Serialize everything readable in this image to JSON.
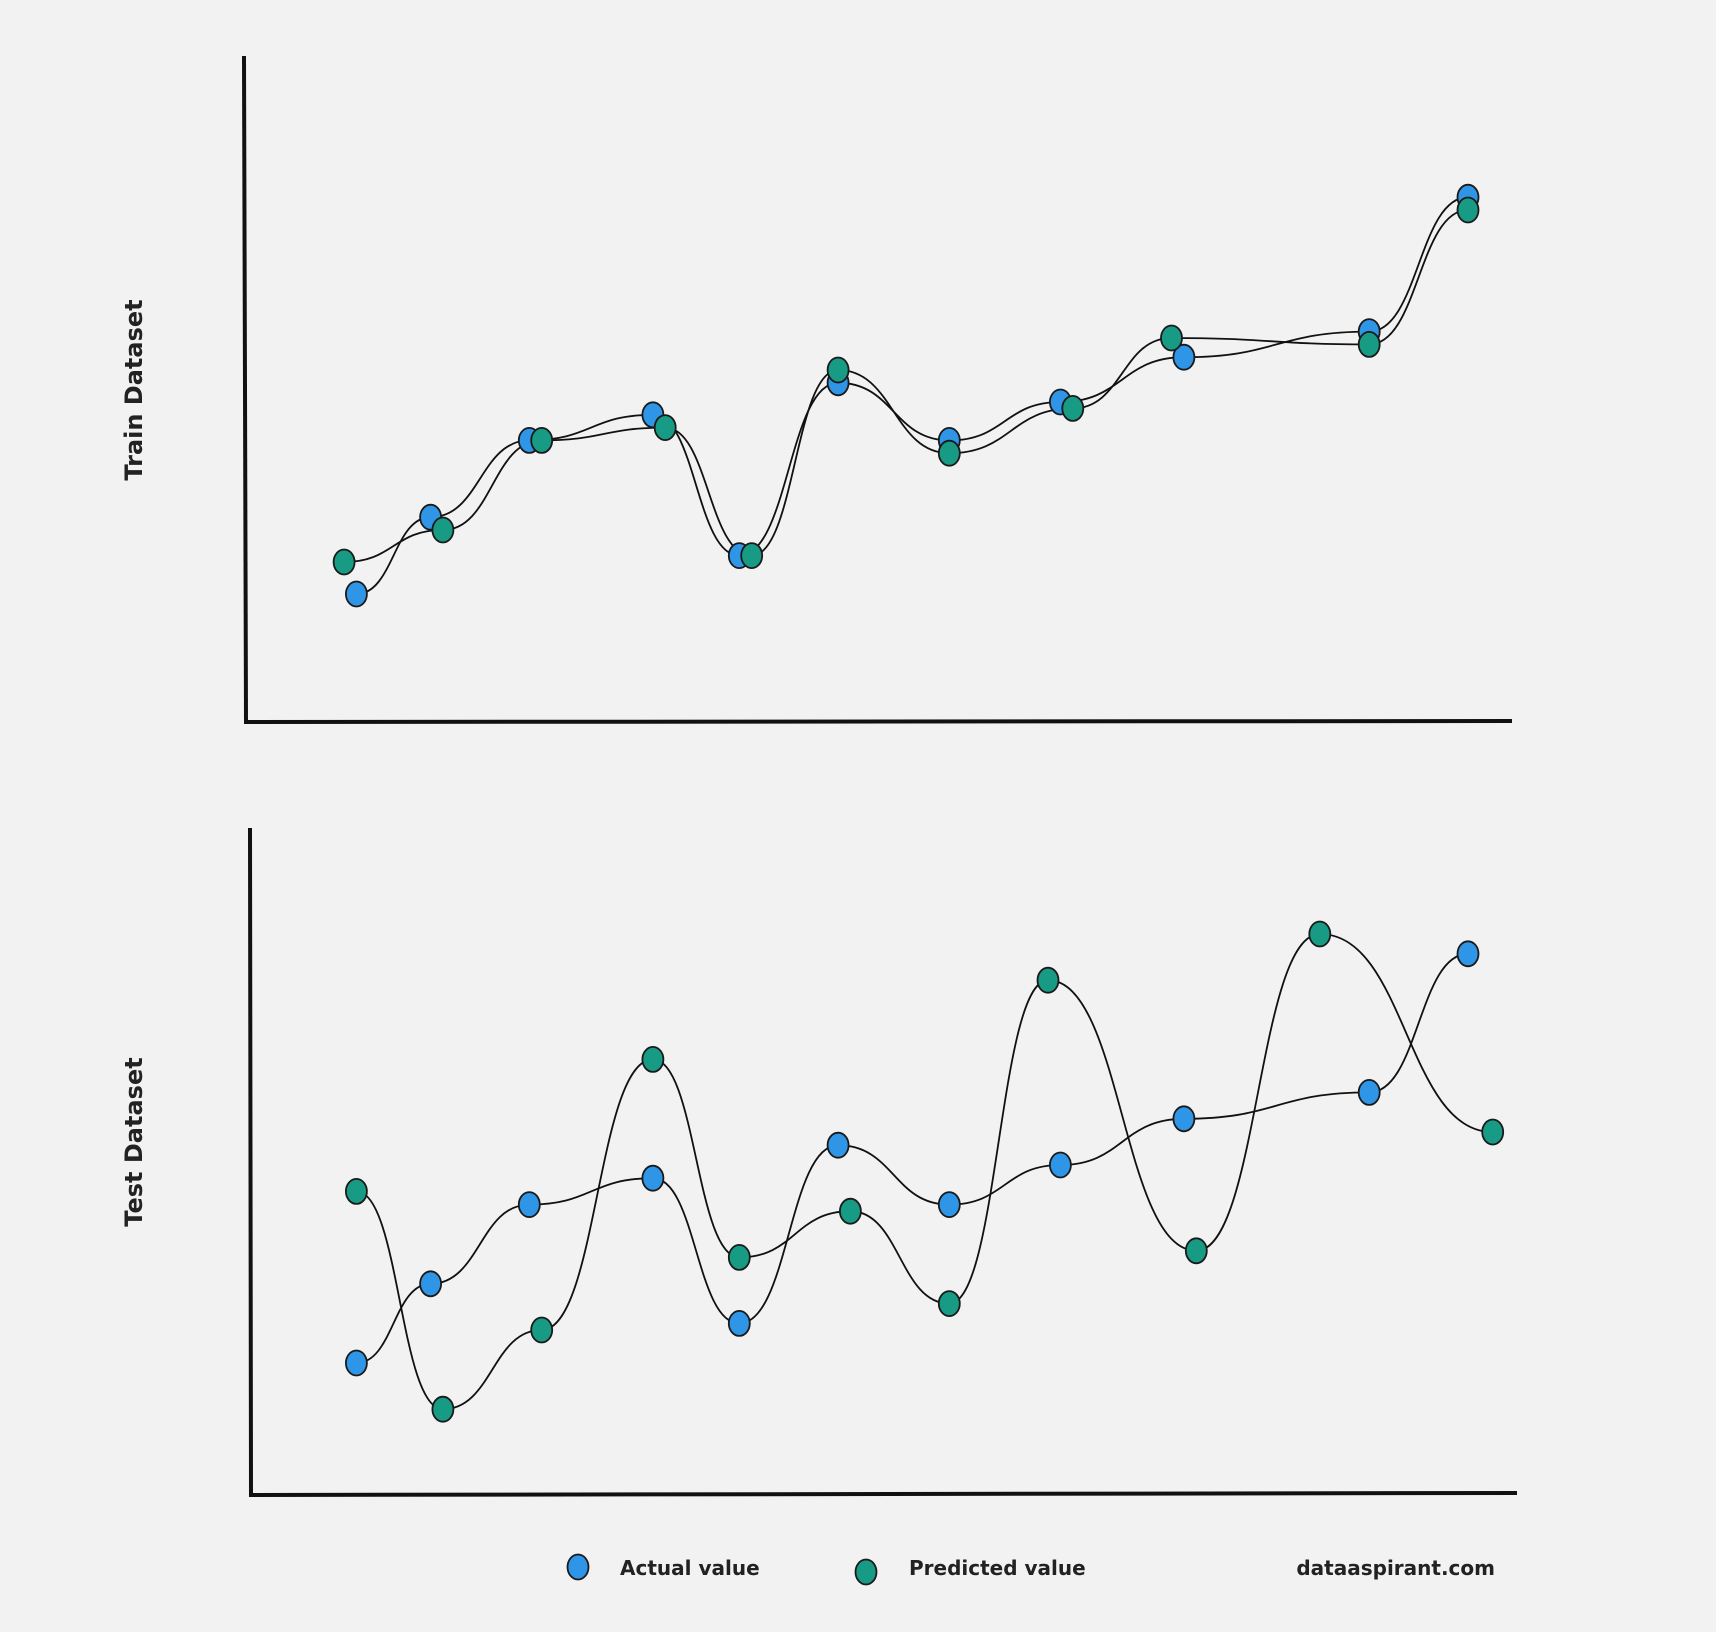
{
  "colors": {
    "background": "#f2f2f2",
    "actual": "#2f95e6",
    "predicted": "#179b84",
    "outline": "#1a1a1a",
    "line": "#111111"
  },
  "legend": {
    "actual_label": "Actual value",
    "predicted_label": "Predicted value",
    "site": "dataaspirant.com"
  },
  "chart_data": [
    {
      "type": "scatter",
      "ylabel": "Train Dataset",
      "xlabel": "",
      "axes_ticks": false,
      "grid": false,
      "x_range": [
        0,
        100
      ],
      "y_range": [
        0,
        100
      ],
      "series": [
        {
          "name": "Actual value",
          "color": "#2f95e6",
          "points": [
            [
              7,
              20
            ],
            [
              13,
              32
            ],
            [
              21,
              44
            ],
            [
              31,
              48
            ],
            [
              38,
              26
            ],
            [
              46,
              53
            ],
            [
              55,
              44
            ],
            [
              64,
              50
            ],
            [
              74,
              57
            ],
            [
              89,
              61
            ],
            [
              97,
              82
            ]
          ]
        },
        {
          "name": "Predicted value",
          "color": "#179b84",
          "points": [
            [
              6,
              25
            ],
            [
              14,
              30
            ],
            [
              22,
              44
            ],
            [
              32,
              46
            ],
            [
              39,
              26
            ],
            [
              46,
              55
            ],
            [
              55,
              42
            ],
            [
              65,
              49
            ],
            [
              73,
              60
            ],
            [
              89,
              59
            ],
            [
              97,
              80
            ]
          ]
        }
      ]
    },
    {
      "type": "scatter",
      "ylabel": "Test Dataset",
      "xlabel": "",
      "axes_ticks": false,
      "grid": false,
      "x_range": [
        0,
        100
      ],
      "y_range": [
        0,
        100
      ],
      "series": [
        {
          "name": "Actual value",
          "color": "#2f95e6",
          "points": [
            [
              7,
              20
            ],
            [
              13,
              32
            ],
            [
              21,
              44
            ],
            [
              31,
              48
            ],
            [
              38,
              26
            ],
            [
              46,
              53
            ],
            [
              55,
              44
            ],
            [
              64,
              50
            ],
            [
              74,
              57
            ],
            [
              89,
              61
            ],
            [
              97,
              82
            ]
          ]
        },
        {
          "name": "Predicted value",
          "color": "#179b84",
          "points": [
            [
              7,
              46
            ],
            [
              14,
              13
            ],
            [
              22,
              25
            ],
            [
              31,
              66
            ],
            [
              38,
              36
            ],
            [
              47,
              43
            ],
            [
              55,
              29
            ],
            [
              63,
              78
            ],
            [
              75,
              37
            ],
            [
              85,
              85
            ],
            [
              99,
              55
            ]
          ]
        }
      ]
    }
  ]
}
